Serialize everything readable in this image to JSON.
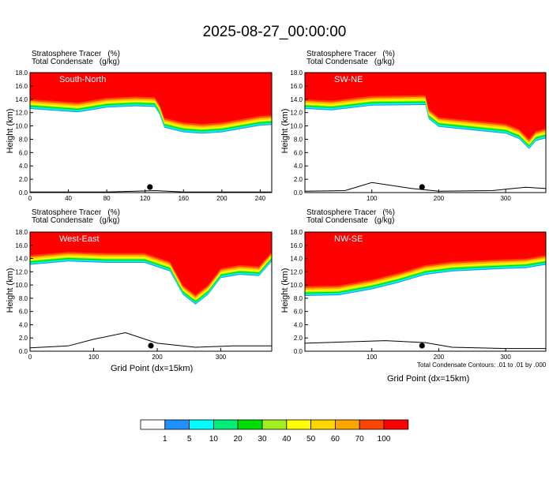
{
  "title": "2025-08-27_00:00:00",
  "ytitle": "Height (km)",
  "xtitle": "Grid Point (dx=15km)",
  "contour_note": "Total Condensate Contours: .01 to .01 by .000",
  "colors": [
    "#ffffff",
    "#1e90ff",
    "#00ffff",
    "#00ee76",
    "#00dd00",
    "#a0ee20",
    "#ffff00",
    "#ffd700",
    "#ffa500",
    "#ff4500",
    "#ff0000"
  ],
  "colorbar_labels": [
    "1",
    "5",
    "10",
    "20",
    "30",
    "40",
    "50",
    "60",
    "70",
    "100"
  ],
  "chart_data": [
    {
      "type": "heatmap",
      "panel": "South-North",
      "left_label": "Stratosphere Tracer",
      "left_unit": "(%)",
      "left_label2": "Total Condensate",
      "left_unit2": "(g/kg)",
      "xlim": [
        0,
        252
      ],
      "xticks": [
        "0",
        "40",
        "80",
        "120",
        "160",
        "200",
        "240"
      ],
      "xtickvals": [
        0,
        40,
        80,
        120,
        160,
        200,
        240
      ],
      "ylim": [
        0,
        18
      ],
      "yticks": [
        "0.0",
        "2.0",
        "4.0",
        "6.0",
        "8.0",
        "10.0",
        "12.0",
        "14.0",
        "16.0",
        "18.0"
      ],
      "tracer_base_km": [
        [
          0,
          14.0
        ],
        [
          20,
          13.8
        ],
        [
          50,
          13.5
        ],
        [
          80,
          14.2
        ],
        [
          110,
          14.4
        ],
        [
          130,
          14.3
        ],
        [
          135,
          13.2
        ],
        [
          140,
          11.2
        ],
        [
          160,
          10.5
        ],
        [
          180,
          10.3
        ],
        [
          200,
          10.5
        ],
        [
          220,
          11.0
        ],
        [
          240,
          11.5
        ],
        [
          252,
          11.6
        ]
      ],
      "terrain_km": [
        [
          0,
          0.1
        ],
        [
          40,
          0.1
        ],
        [
          80,
          0.1
        ],
        [
          110,
          0.2
        ],
        [
          130,
          0.3
        ],
        [
          160,
          0.1
        ],
        [
          200,
          0.1
        ],
        [
          252,
          0.1
        ]
      ],
      "marker_x": 125
    },
    {
      "type": "heatmap",
      "panel": "SW-NE",
      "left_label": "Stratosphere Tracer",
      "left_unit": "(%)",
      "left_label2": "Total Condensate",
      "left_unit2": "(g/kg)",
      "xlim": [
        0,
        360
      ],
      "xticks": [
        "100",
        "200",
        "300"
      ],
      "xtickvals": [
        100,
        200,
        300
      ],
      "ylim": [
        0,
        18
      ],
      "yticks": [
        "0.0",
        "2.0",
        "4.0",
        "6.0",
        "8.0",
        "10.0",
        "12.0",
        "14.0",
        "16.0",
        "18.0"
      ],
      "tracer_base_km": [
        [
          0,
          14.0
        ],
        [
          40,
          13.8
        ],
        [
          100,
          14.5
        ],
        [
          180,
          14.6
        ],
        [
          185,
          12.5
        ],
        [
          200,
          11.3
        ],
        [
          250,
          10.8
        ],
        [
          300,
          10.3
        ],
        [
          320,
          9.5
        ],
        [
          335,
          8.0
        ],
        [
          345,
          9.2
        ],
        [
          360,
          9.6
        ]
      ],
      "terrain_km": [
        [
          0,
          0.2
        ],
        [
          60,
          0.3
        ],
        [
          100,
          1.5
        ],
        [
          160,
          0.6
        ],
        [
          200,
          0.2
        ],
        [
          280,
          0.3
        ],
        [
          330,
          0.8
        ],
        [
          360,
          0.6
        ]
      ],
      "marker_x": 175
    },
    {
      "type": "heatmap",
      "panel": "West-East",
      "left_label": "Stratosphere Tracer",
      "left_unit": "(%)",
      "left_label2": "Total Condensate",
      "left_unit2": "(g/kg)",
      "xlim": [
        0,
        380
      ],
      "xticks": [
        "0",
        "100",
        "200",
        "300"
      ],
      "xtickvals": [
        0,
        100,
        200,
        300
      ],
      "ylim": [
        0,
        18
      ],
      "yticks": [
        "0.0",
        "2.0",
        "4.0",
        "6.0",
        "8.0",
        "10.0",
        "12.0",
        "14.0",
        "16.0",
        "18.0"
      ],
      "tracer_base_km": [
        [
          0,
          14.5
        ],
        [
          60,
          15.0
        ],
        [
          120,
          14.8
        ],
        [
          180,
          14.8
        ],
        [
          220,
          13.5
        ],
        [
          240,
          10.0
        ],
        [
          260,
          8.5
        ],
        [
          280,
          10.0
        ],
        [
          300,
          12.5
        ],
        [
          330,
          13.0
        ],
        [
          360,
          12.8
        ],
        [
          380,
          15.0
        ]
      ],
      "terrain_km": [
        [
          0,
          0.5
        ],
        [
          60,
          0.8
        ],
        [
          100,
          1.8
        ],
        [
          150,
          2.8
        ],
        [
          200,
          1.2
        ],
        [
          260,
          0.6
        ],
        [
          320,
          0.8
        ],
        [
          380,
          0.8
        ]
      ],
      "marker_x": 190
    },
    {
      "type": "heatmap",
      "panel": "NW-SE",
      "left_label": "Stratosphere Tracer",
      "left_unit": "(%)",
      "left_label2": "Total Condensate",
      "left_unit2": "(g/kg)",
      "xlim": [
        0,
        360
      ],
      "xticks": [
        "100",
        "200",
        "300"
      ],
      "xtickvals": [
        100,
        200,
        300
      ],
      "ylim": [
        0,
        18
      ],
      "yticks": [
        "0.0",
        "2.0",
        "4.0",
        "6.0",
        "8.0",
        "10.0",
        "12.0",
        "14.0",
        "16.0",
        "18.0"
      ],
      "tracer_base_km": [
        [
          0,
          9.8
        ],
        [
          50,
          9.9
        ],
        [
          100,
          10.8
        ],
        [
          140,
          11.8
        ],
        [
          180,
          13.0
        ],
        [
          220,
          13.5
        ],
        [
          280,
          13.8
        ],
        [
          330,
          14.0
        ],
        [
          360,
          14.5
        ]
      ],
      "terrain_km": [
        [
          0,
          1.2
        ],
        [
          60,
          1.4
        ],
        [
          120,
          1.6
        ],
        [
          180,
          1.3
        ],
        [
          220,
          0.6
        ],
        [
          300,
          0.4
        ],
        [
          360,
          0.4
        ]
      ],
      "marker_x": 175
    }
  ]
}
